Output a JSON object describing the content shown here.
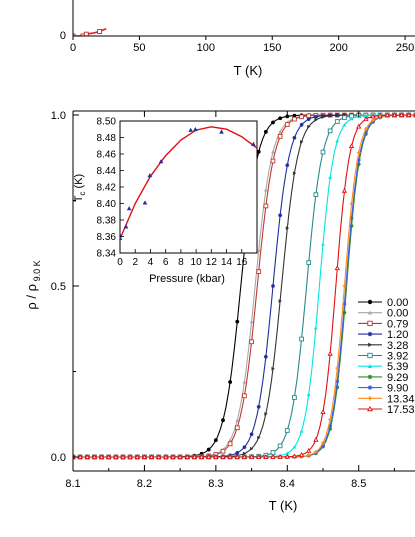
{
  "chart_data": [
    {
      "type": "line",
      "xlabel": "T (K)",
      "ylabel": "",
      "xticks": [
        "0",
        "50",
        "100",
        "150",
        "200",
        "250"
      ],
      "yticks": [
        "0"
      ],
      "xlim": [
        0,
        265
      ],
      "series": [
        {
          "name": "",
          "color": "#d62020",
          "x": [
            0,
            5,
            7.5,
            8.5,
            10,
            15,
            20,
            25
          ],
          "y": [
            0,
            0,
            0,
            0.6,
            1.0,
            1.6,
            2.5,
            4.0
          ]
        }
      ]
    },
    {
      "type": "line",
      "xlabel": "T (K)",
      "ylabel": "ρ / ρ 9.0 K",
      "xticks": [
        "8.1",
        "8.2",
        "8.3",
        "8.4",
        "8.5"
      ],
      "yticks": [
        "0.0",
        "0.5",
        "1.0"
      ],
      "xlim": [
        8.1,
        8.59
      ],
      "ylim": [
        -0.03,
        1.03
      ],
      "legend_placement": "right",
      "series": [
        {
          "name": "0.00",
          "color": "#000000",
          "marker": "circle",
          "tc": 8.335,
          "w": 0.026
        },
        {
          "name": "0.00",
          "color": "#a8a8a8",
          "marker": "triangle",
          "tc": 8.355,
          "w": 0.026
        },
        {
          "name": "0.79",
          "color": "#c0392b",
          "marker": "square-open",
          "tc": 8.358,
          "w": 0.026
        },
        {
          "name": "1.20",
          "color": "#1f2fa0",
          "marker": "star",
          "tc": 8.38,
          "w": 0.025
        },
        {
          "name": "3.28",
          "color": "#333333",
          "marker": "triangle-right",
          "tc": 8.392,
          "w": 0.025
        },
        {
          "name": "3.92",
          "color": "#2a8a8a",
          "marker": "square-open",
          "tc": 8.427,
          "w": 0.024
        },
        {
          "name": "5.39",
          "color": "#00e5e5",
          "marker": "triangle",
          "tc": 8.445,
          "w": 0.022
        },
        {
          "name": "9.29",
          "color": "#2d8a2d",
          "marker": "star",
          "tc": 8.483,
          "w": 0.021
        },
        {
          "name": "9.90",
          "color": "#4060e0",
          "marker": "star",
          "tc": 8.482,
          "w": 0.021
        },
        {
          "name": "13.34",
          "color": "#ff8c1a",
          "marker": "plus",
          "tc": 8.48,
          "w": 0.021
        },
        {
          "name": "17.53",
          "color": "#e01010",
          "marker": "triangle-open",
          "tc": 8.468,
          "w": 0.021
        }
      ],
      "legend_labels": [
        "0.00",
        "0.00",
        "0.79",
        "1.20",
        "3.28",
        "3.92",
        "5.39",
        "9.29",
        "9.90",
        "13.34",
        "17.53"
      ]
    },
    {
      "type": "scatter",
      "xlabel": "Pressure (kbar)",
      "ylabel": "T c (K)",
      "xticks": [
        "0",
        "2",
        "4",
        "6",
        "8",
        "10",
        "12",
        "14",
        "16"
      ],
      "yticks": [
        "8.34",
        "8.36",
        "8.38",
        "8.40",
        "8.42",
        "8.44",
        "8.46",
        "8.48",
        "8.50"
      ],
      "xlim": [
        0,
        18
      ],
      "ylim": [
        8.34,
        8.5
      ],
      "points": {
        "name": "",
        "color": "#1f2fa0",
        "x": [
          0.0,
          0.0,
          0.79,
          1.2,
          3.28,
          3.92,
          5.39,
          9.29,
          9.9,
          13.34,
          17.53
        ],
        "y": [
          8.358,
          8.362,
          8.372,
          8.394,
          8.401,
          8.434,
          8.451,
          8.489,
          8.49,
          8.487,
          8.472
        ]
      },
      "fit": {
        "name": "",
        "color": "#e01010",
        "x": [
          0,
          2,
          4,
          6,
          8,
          10,
          12,
          14,
          16,
          18
        ],
        "y": [
          8.357,
          8.4,
          8.433,
          8.458,
          8.477,
          8.489,
          8.493,
          8.49,
          8.481,
          8.467
        ]
      }
    }
  ]
}
